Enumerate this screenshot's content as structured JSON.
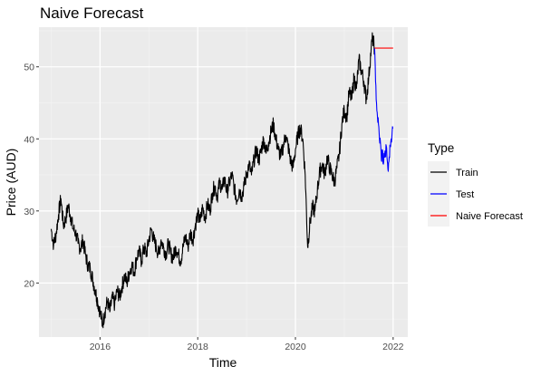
{
  "chart_data": {
    "type": "line",
    "title": "Naive Forecast",
    "xlabel": "Time",
    "ylabel": "Price (AUD)",
    "xlim": [
      2014.75,
      2022.3
    ],
    "ylim": [
      12.5,
      55.5
    ],
    "x_ticks": [
      2016,
      2018,
      2020,
      2022
    ],
    "y_ticks": [
      20,
      30,
      40,
      50
    ],
    "grid": true,
    "legend": {
      "title": "Type",
      "position": "right"
    },
    "colors": {
      "panel": "#ebebeb",
      "grid_major": "#ffffff",
      "train": "#000000",
      "test": "#0000ff",
      "forecast": "#ff0000"
    },
    "series": [
      {
        "name": "Train",
        "color": "#000000",
        "points": [
          [
            2015.0,
            27.5
          ],
          [
            2015.05,
            25.3
          ],
          [
            2015.1,
            26.8
          ],
          [
            2015.15,
            29.5
          ],
          [
            2015.2,
            31.7
          ],
          [
            2015.25,
            28.0
          ],
          [
            2015.3,
            29.0
          ],
          [
            2015.35,
            30.8
          ],
          [
            2015.4,
            29.2
          ],
          [
            2015.45,
            27.5
          ],
          [
            2015.5,
            27.0
          ],
          [
            2015.55,
            25.5
          ],
          [
            2015.6,
            24.8
          ],
          [
            2015.65,
            26.0
          ],
          [
            2015.7,
            24.0
          ],
          [
            2015.75,
            22.5
          ],
          [
            2015.8,
            22.0
          ],
          [
            2015.85,
            20.5
          ],
          [
            2015.9,
            19.0
          ],
          [
            2015.95,
            17.5
          ],
          [
            2016.0,
            16.0
          ],
          [
            2016.05,
            14.3
          ],
          [
            2016.1,
            16.0
          ],
          [
            2016.15,
            17.5
          ],
          [
            2016.2,
            16.0
          ],
          [
            2016.25,
            18.0
          ],
          [
            2016.3,
            17.0
          ],
          [
            2016.35,
            19.0
          ],
          [
            2016.4,
            18.0
          ],
          [
            2016.45,
            19.5
          ],
          [
            2016.5,
            21.0
          ],
          [
            2016.55,
            20.0
          ],
          [
            2016.6,
            21.5
          ],
          [
            2016.65,
            22.5
          ],
          [
            2016.7,
            21.5
          ],
          [
            2016.75,
            23.5
          ],
          [
            2016.8,
            24.5
          ],
          [
            2016.85,
            23.0
          ],
          [
            2016.9,
            25.0
          ],
          [
            2016.95,
            24.0
          ],
          [
            2017.0,
            26.0
          ],
          [
            2017.05,
            27.5
          ],
          [
            2017.1,
            26.0
          ],
          [
            2017.15,
            25.0
          ],
          [
            2017.2,
            24.0
          ],
          [
            2017.25,
            26.0
          ],
          [
            2017.3,
            25.0
          ],
          [
            2017.35,
            24.0
          ],
          [
            2017.4,
            25.5
          ],
          [
            2017.45,
            24.0
          ],
          [
            2017.5,
            23.5
          ],
          [
            2017.55,
            25.0
          ],
          [
            2017.6,
            24.0
          ],
          [
            2017.65,
            23.0
          ],
          [
            2017.7,
            25.0
          ],
          [
            2017.75,
            26.5
          ],
          [
            2017.8,
            25.0
          ],
          [
            2017.85,
            27.0
          ],
          [
            2017.9,
            26.0
          ],
          [
            2017.95,
            28.0
          ],
          [
            2018.0,
            29.5
          ],
          [
            2018.05,
            28.5
          ],
          [
            2018.1,
            30.5
          ],
          [
            2018.15,
            29.0
          ],
          [
            2018.2,
            31.0
          ],
          [
            2018.25,
            30.0
          ],
          [
            2018.3,
            32.5
          ],
          [
            2018.35,
            33.5
          ],
          [
            2018.4,
            32.0
          ],
          [
            2018.45,
            34.0
          ],
          [
            2018.5,
            33.0
          ],
          [
            2018.55,
            34.5
          ],
          [
            2018.6,
            32.5
          ],
          [
            2018.65,
            34.0
          ],
          [
            2018.7,
            35.0
          ],
          [
            2018.75,
            33.0
          ],
          [
            2018.8,
            31.5
          ],
          [
            2018.85,
            33.0
          ],
          [
            2018.9,
            32.0
          ],
          [
            2018.95,
            33.5
          ],
          [
            2019.0,
            35.0
          ],
          [
            2019.05,
            36.5
          ],
          [
            2019.1,
            35.0
          ],
          [
            2019.15,
            37.0
          ],
          [
            2019.2,
            38.5
          ],
          [
            2019.25,
            37.0
          ],
          [
            2019.3,
            38.5
          ],
          [
            2019.35,
            40.0
          ],
          [
            2019.4,
            38.0
          ],
          [
            2019.45,
            39.5
          ],
          [
            2019.5,
            41.0
          ],
          [
            2019.55,
            42.0
          ],
          [
            2019.6,
            40.0
          ],
          [
            2019.65,
            38.5
          ],
          [
            2019.7,
            37.5
          ],
          [
            2019.75,
            39.0
          ],
          [
            2019.8,
            40.5
          ],
          [
            2019.85,
            39.0
          ],
          [
            2019.9,
            37.0
          ],
          [
            2019.95,
            36.0
          ],
          [
            2020.0,
            38.5
          ],
          [
            2020.05,
            40.5
          ],
          [
            2020.1,
            41.5
          ],
          [
            2020.15,
            40.0
          ],
          [
            2020.2,
            35.0
          ],
          [
            2020.25,
            25.0
          ],
          [
            2020.3,
            28.5
          ],
          [
            2020.35,
            30.5
          ],
          [
            2020.4,
            30.0
          ],
          [
            2020.45,
            33.0
          ],
          [
            2020.5,
            35.5
          ],
          [
            2020.55,
            36.5
          ],
          [
            2020.6,
            35.0
          ],
          [
            2020.65,
            37.5
          ],
          [
            2020.7,
            36.0
          ],
          [
            2020.75,
            35.0
          ],
          [
            2020.8,
            34.0
          ],
          [
            2020.85,
            36.0
          ],
          [
            2020.9,
            38.0
          ],
          [
            2020.95,
            42.0
          ],
          [
            2021.0,
            44.0
          ],
          [
            2021.05,
            43.0
          ],
          [
            2021.1,
            46.5
          ],
          [
            2021.15,
            45.5
          ],
          [
            2021.2,
            48.5
          ],
          [
            2021.25,
            47.0
          ],
          [
            2021.3,
            51.0
          ],
          [
            2021.35,
            49.5
          ],
          [
            2021.4,
            48.0
          ],
          [
            2021.45,
            45.5
          ],
          [
            2021.5,
            48.5
          ],
          [
            2021.55,
            52.5
          ],
          [
            2021.58,
            54.0
          ],
          [
            2021.62,
            52.6
          ]
        ]
      },
      {
        "name": "Test",
        "color": "#0000ff",
        "points": [
          [
            2021.62,
            52.6
          ],
          [
            2021.64,
            48.0
          ],
          [
            2021.66,
            45.0
          ],
          [
            2021.68,
            43.0
          ],
          [
            2021.7,
            42.0
          ],
          [
            2021.72,
            40.0
          ],
          [
            2021.74,
            39.5
          ],
          [
            2021.76,
            37.0
          ],
          [
            2021.78,
            38.5
          ],
          [
            2021.8,
            36.5
          ],
          [
            2021.82,
            38.0
          ],
          [
            2021.84,
            37.5
          ],
          [
            2021.86,
            39.0
          ],
          [
            2021.88,
            37.0
          ],
          [
            2021.9,
            35.5
          ],
          [
            2021.92,
            37.5
          ],
          [
            2021.94,
            39.0
          ],
          [
            2021.96,
            40.0
          ],
          [
            2021.98,
            41.0
          ],
          [
            2022.0,
            41.5
          ]
        ]
      },
      {
        "name": "Naive Forecast",
        "color": "#ff0000",
        "points": [
          [
            2021.62,
            52.6
          ],
          [
            2022.0,
            52.6
          ]
        ]
      }
    ]
  }
}
